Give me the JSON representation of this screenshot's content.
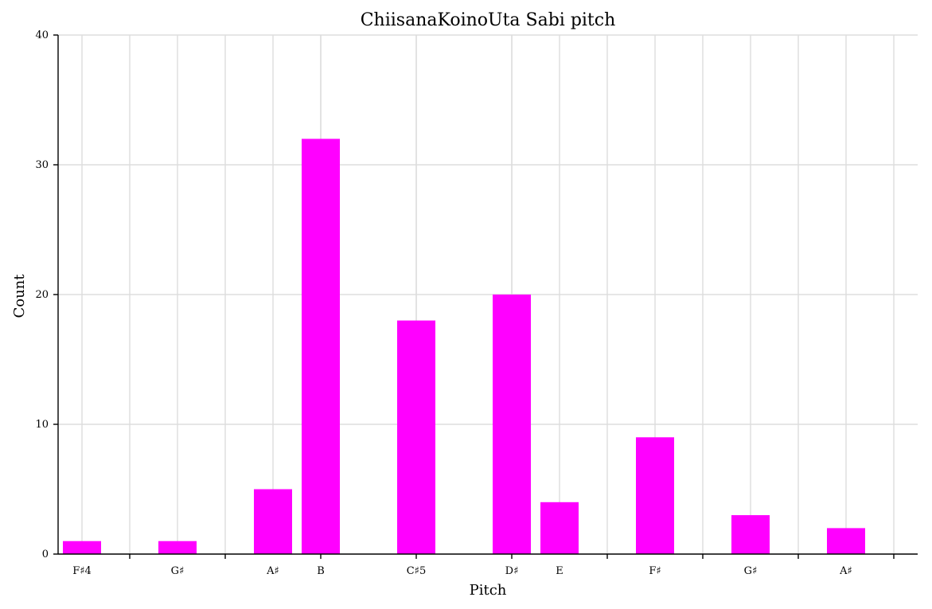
{
  "chart_data": {
    "type": "bar",
    "title": "ChiisanaKoinoUta Sabi pitch",
    "xlabel": "Pitch",
    "ylabel": "Count",
    "ylim": [
      0,
      40
    ],
    "yticks": [
      0,
      10,
      20,
      30,
      40
    ],
    "grid": true,
    "semitone_range": [
      -0.5,
      17.5
    ],
    "semitone_ticks": [
      0,
      2,
      4,
      6,
      8,
      10,
      12,
      14,
      16
    ],
    "categories": [
      "F♯4",
      "G♯",
      "A♯",
      "B",
      "C♯5",
      "D♯",
      "E",
      "F♯",
      "G♯",
      "A♯"
    ],
    "semitones": [
      0,
      2,
      4,
      5,
      7,
      9,
      10,
      12,
      14,
      16
    ],
    "values": [
      1,
      1,
      5,
      32,
      18,
      20,
      4,
      9,
      3,
      2
    ],
    "bar_color": "#ff00ff"
  }
}
